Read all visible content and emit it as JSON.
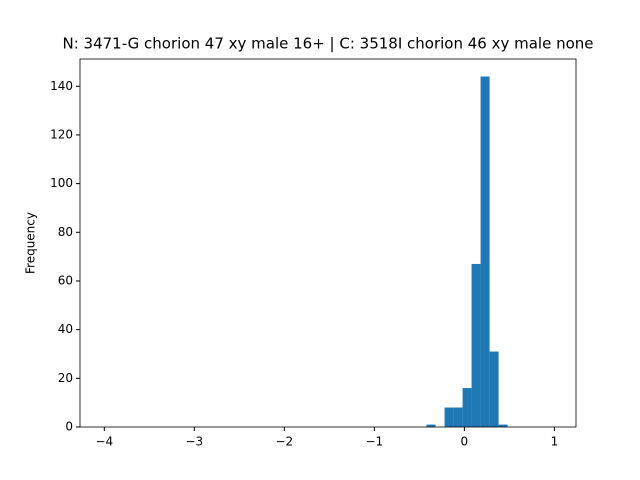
{
  "chart_data": {
    "type": "histogram",
    "title": "N: 3471-G chorion 47 xy male 16+ | C: 3518I chorion 46 xy male none",
    "y_label": "Frequency",
    "color": "#1f77b4",
    "bins": [
      -4.02,
      -3.92,
      -3.82,
      -3.72,
      -3.62,
      -3.52,
      -3.42,
      -3.32,
      -3.22,
      -3.12,
      -3.02,
      -2.92,
      -2.82,
      -2.72,
      -2.62,
      -2.52,
      -2.42,
      -2.32,
      -2.22,
      -2.12,
      -2.02,
      -1.92,
      -1.82,
      -1.72,
      -1.62,
      -1.52,
      -1.42,
      -1.32,
      -1.22,
      -1.12,
      -1.02,
      -0.92,
      -0.82,
      -0.72,
      -0.62,
      -0.52,
      -0.42,
      -0.32,
      -0.22,
      -0.12,
      -0.02,
      0.08,
      0.18,
      0.28,
      0.38,
      0.48,
      0.58,
      0.68,
      0.78,
      0.88,
      0.98
    ],
    "values": [
      0,
      0,
      0,
      0,
      0,
      0,
      0,
      0,
      0,
      0,
      0,
      0,
      0,
      0,
      0,
      0,
      0,
      0,
      0,
      0,
      0,
      0,
      0,
      0,
      0,
      0,
      0,
      0,
      0,
      0,
      0,
      0,
      0,
      0,
      0,
      0,
      1,
      0,
      8,
      8,
      16,
      67,
      144,
      31,
      1,
      0,
      0,
      0,
      0,
      0
    ],
    "xlim": [
      -4.27,
      1.24
    ],
    "ylim": [
      0,
      151.2
    ],
    "xticks": [
      {
        "value": -4,
        "label": "−4"
      },
      {
        "value": -3,
        "label": "−3"
      },
      {
        "value": -2,
        "label": "−2"
      },
      {
        "value": -1,
        "label": "−1"
      },
      0,
      1
    ],
    "yticks": [
      0,
      20,
      40,
      60,
      80,
      100,
      120,
      140
    ]
  }
}
